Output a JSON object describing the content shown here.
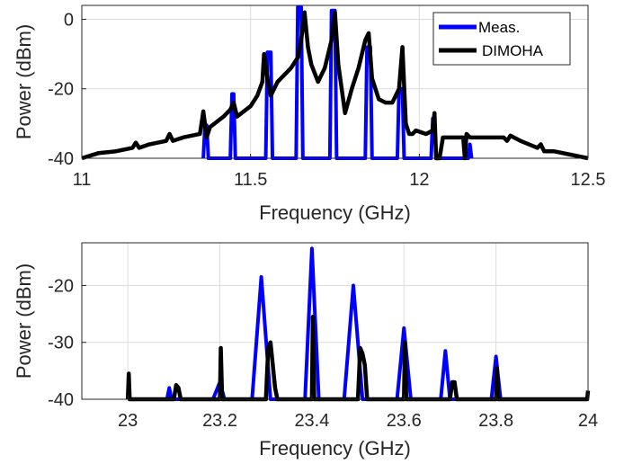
{
  "chart_data": [
    {
      "type": "line",
      "xlabel": "Frequency (GHz)",
      "ylabel": "Power (dBm)",
      "xlim": [
        11,
        12.5
      ],
      "ylim": [
        -40,
        4
      ],
      "xticks": [
        11,
        11.5,
        12,
        12.5
      ],
      "xtick_labels": [
        "11",
        "11.5",
        "12",
        "12.5"
      ],
      "yticks": [
        -40,
        -20,
        0
      ],
      "ytick_labels": [
        "-40",
        "-20",
        "0"
      ],
      "grid": true,
      "legend": {
        "placement": "top-right",
        "entries": [
          "Meas.",
          "DIMOHA"
        ]
      },
      "series": [
        {
          "name": "Meas.",
          "color": "#0000ff",
          "x": [
            11.36,
            11.365,
            11.37,
            11.375,
            11.44,
            11.445,
            11.45,
            11.455,
            11.545,
            11.55,
            11.555,
            11.56,
            11.565,
            11.635,
            11.64,
            11.645,
            11.65,
            11.655,
            11.735,
            11.74,
            11.745,
            11.75,
            11.755,
            11.84,
            11.845,
            11.85,
            11.855,
            11.86,
            11.935,
            11.94,
            11.945,
            11.95,
            11.955,
            12.035,
            12.04,
            12.045,
            12.05,
            12.145,
            12.15,
            12.155
          ],
          "y": [
            -40,
            -30.5,
            -30.5,
            -40,
            -40,
            -21.5,
            -21.5,
            -40,
            -40,
            -9.5,
            -9.5,
            -9.5,
            -40,
            -40,
            3.5,
            3.5,
            3.5,
            -40,
            -40,
            2.5,
            2.5,
            2.5,
            -40,
            -40,
            -8,
            -8,
            -8,
            -40,
            -40,
            -20,
            -20,
            -20,
            -40,
            -40,
            -28.5,
            -28.5,
            -40,
            -40,
            -36,
            -40
          ]
        },
        {
          "name": "DIMOHA",
          "color": "#000000",
          "x": [
            11,
            11.05,
            11.1,
            11.15,
            11.16,
            11.17,
            11.2,
            11.25,
            11.26,
            11.27,
            11.3,
            11.35,
            11.36,
            11.37,
            11.38,
            11.42,
            11.44,
            11.45,
            11.46,
            11.5,
            11.52,
            11.535,
            11.54,
            11.55,
            11.56,
            11.58,
            11.6,
            11.62,
            11.64,
            11.65,
            11.66,
            11.67,
            11.68,
            11.7,
            11.72,
            11.74,
            11.75,
            11.76,
            11.78,
            11.8,
            11.82,
            11.84,
            11.85,
            11.86,
            11.88,
            11.9,
            11.92,
            11.94,
            11.95,
            11.96,
            11.97,
            11.98,
            11.99,
            12.02,
            12.04,
            12.045,
            12.05,
            12.06,
            12.07,
            12.08,
            12.1,
            12.11,
            12.12,
            12.13,
            12.135,
            12.14,
            12.15,
            12.16,
            12.2,
            12.25,
            12.26,
            12.27,
            12.3,
            12.35,
            12.36,
            12.37,
            12.4,
            12.45,
            12.5
          ],
          "y": [
            -40,
            -38.5,
            -38,
            -37,
            -35.5,
            -37,
            -36,
            -35,
            -33,
            -35,
            -34,
            -33,
            -26.5,
            -34,
            -31,
            -28,
            -26,
            -24,
            -28,
            -25,
            -22,
            -18,
            -10,
            -17,
            -22,
            -18,
            -16,
            -14,
            -11,
            -6,
            2,
            -8,
            -13,
            -18,
            -14,
            -6,
            2,
            -13,
            -27,
            -20,
            -14,
            -6,
            -4,
            -17,
            -23,
            -24,
            -24,
            -20,
            -8,
            -30,
            -33,
            -33,
            -32,
            -33,
            -32,
            -27,
            -40,
            -40,
            -34,
            -34,
            -34,
            -34,
            -34,
            -34,
            -40,
            -33,
            -34,
            -34,
            -34,
            -34,
            -35,
            -33.5,
            -35,
            -37,
            -36,
            -38,
            -38,
            -39,
            -40
          ]
        }
      ]
    },
    {
      "type": "line",
      "xlabel": "Frequency (GHz)",
      "ylabel": "Power (dBm)",
      "xlim": [
        22.9,
        24
      ],
      "ylim": [
        -40,
        -12.5
      ],
      "xticks": [
        23,
        23.2,
        23.4,
        23.6,
        23.8,
        24
      ],
      "xtick_labels": [
        "23",
        "23.2",
        "23.4",
        "23.6",
        "23.8",
        "24"
      ],
      "yticks": [
        -40,
        -30,
        -20
      ],
      "ytick_labels": [
        "-40",
        "-30",
        "-20"
      ],
      "grid": true,
      "series": [
        {
          "name": "Meas.",
          "color": "#0000ff",
          "x": [
            23.085,
            23.09,
            23.095,
            23.185,
            23.2,
            23.21,
            23.27,
            23.29,
            23.31,
            23.385,
            23.4,
            23.415,
            23.47,
            23.49,
            23.51,
            23.585,
            23.6,
            23.615,
            23.68,
            23.69,
            23.7,
            23.79,
            23.8,
            23.81
          ],
          "y": [
            -40,
            -38,
            -40,
            -40,
            -37,
            -40,
            -40,
            -18.5,
            -40,
            -40,
            -13.5,
            -40,
            -40,
            -20,
            -40,
            -40,
            -27.5,
            -40,
            -40,
            -31.5,
            -40,
            -40,
            -32.5,
            -40
          ]
        },
        {
          "name": "DIMOHA",
          "color": "#000000",
          "x": [
            23,
            23.002,
            23.004,
            23.1,
            23.105,
            23.11,
            23.115,
            23.2,
            23.202,
            23.205,
            23.3,
            23.305,
            23.31,
            23.315,
            23.32,
            23.325,
            23.4,
            23.402,
            23.405,
            23.5,
            23.505,
            23.51,
            23.515,
            23.52,
            23.6,
            23.602,
            23.605,
            23.7,
            23.705,
            23.71,
            23.715,
            23.8,
            23.802,
            23.805,
            23.998,
            24
          ],
          "y": [
            -40,
            -35.5,
            -40,
            -40,
            -37.5,
            -38,
            -40,
            -40,
            -31,
            -40,
            -40,
            -31,
            -30,
            -34,
            -38,
            -40,
            -40,
            -25.5,
            -40,
            -40,
            -31,
            -32,
            -34,
            -40,
            -40,
            -30,
            -40,
            -40,
            -37,
            -37,
            -40,
            -40,
            -34.5,
            -40,
            -40,
            -38.5
          ]
        }
      ]
    }
  ]
}
